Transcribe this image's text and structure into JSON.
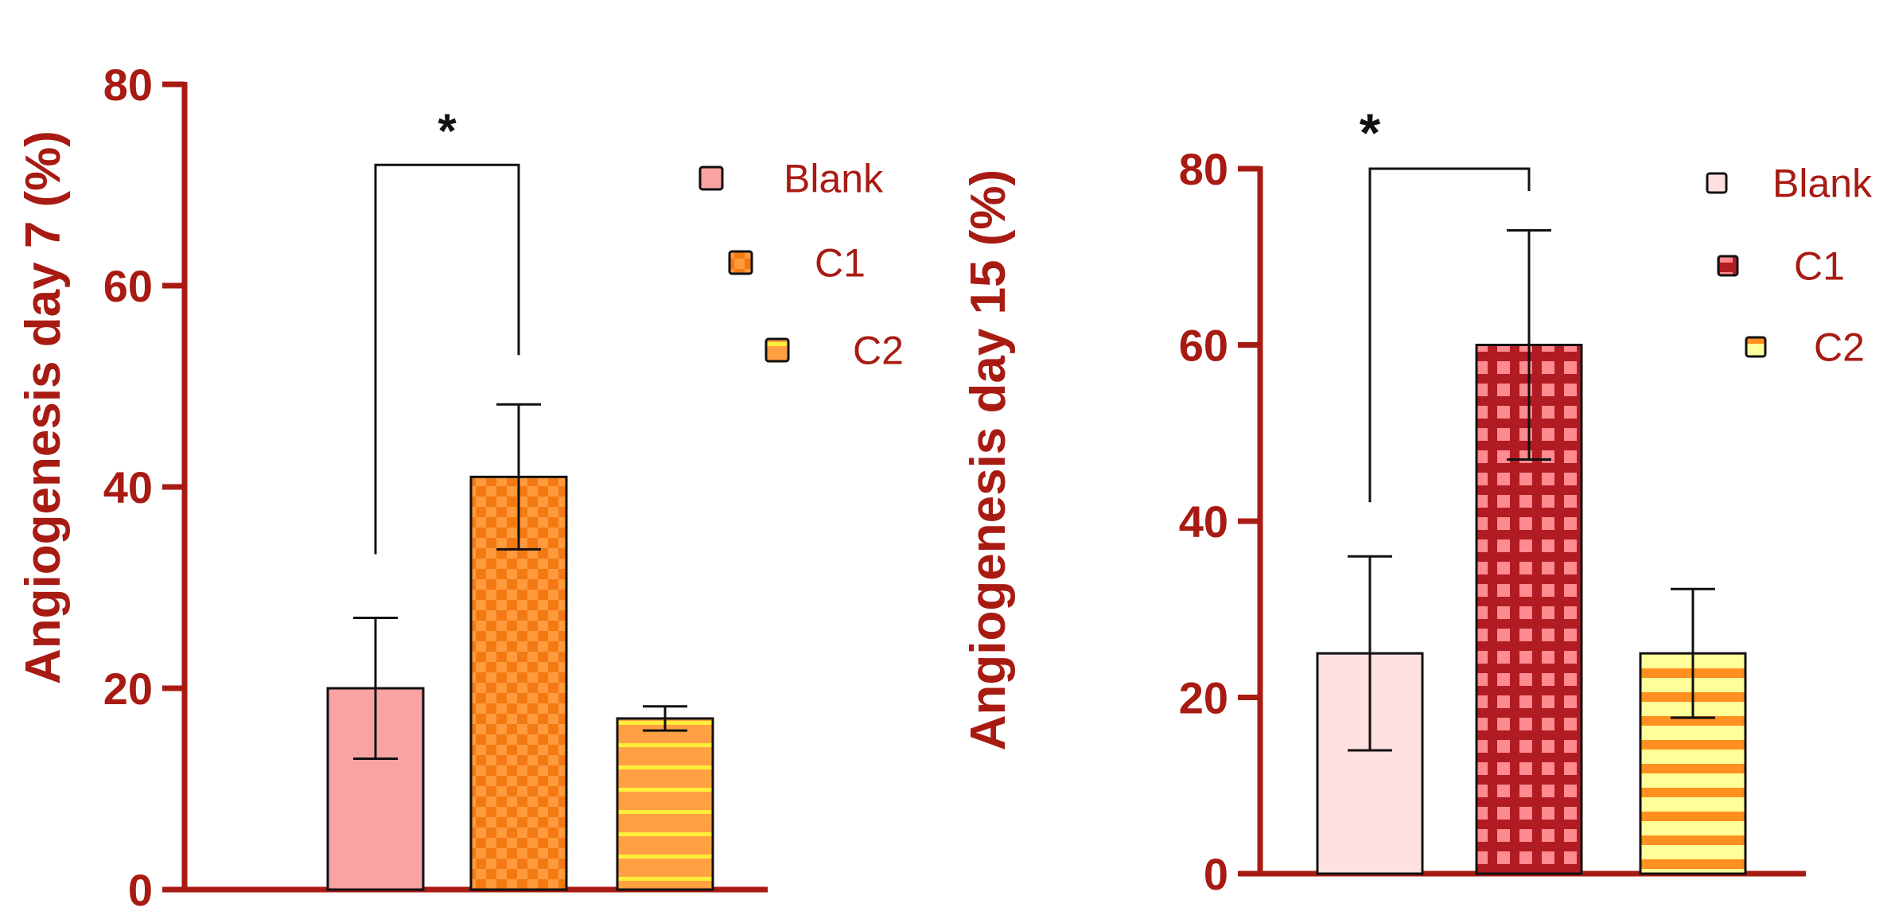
{
  "chart_data": [
    {
      "type": "bar",
      "ylabel": "Angiogenesis day 7   (%)",
      "ylim": [
        0,
        80
      ],
      "yticks": [
        0,
        20,
        40,
        60,
        80
      ],
      "categories": [
        "Blank",
        "C1",
        "C2"
      ],
      "values": [
        20,
        41,
        17
      ],
      "errors": [
        7,
        7.2,
        1.2
      ],
      "legend": [
        "Blank",
        "C1",
        "C2"
      ],
      "legend_position": "top-right",
      "significance": {
        "from": 0,
        "to": 1,
        "label": "*"
      },
      "axis_color": "#a81b13",
      "bar_styles": [
        {
          "fill": "#f9a3a3",
          "pattern": "solid"
        },
        {
          "fill": "#f37a12",
          "alt": "#ff9a3d",
          "pattern": "checker"
        },
        {
          "fill": "#ffa043",
          "alt": "#ffee3a",
          "pattern": "stripes"
        }
      ]
    },
    {
      "type": "bar",
      "ylabel": "Angiogenesis day 15  (%)",
      "ylim": [
        0,
        80
      ],
      "yticks": [
        0,
        20,
        40,
        60,
        80
      ],
      "categories": [
        "Blank",
        "C1",
        "C2"
      ],
      "values": [
        25,
        60,
        25
      ],
      "errors": [
        11,
        13,
        7.3
      ],
      "legend": [
        "Blank",
        "C1",
        "C2"
      ],
      "legend_position": "top-right",
      "significance": {
        "from": 0,
        "to": 1,
        "label": "*"
      },
      "axis_color": "#a81b13",
      "bar_styles": [
        {
          "fill": "#ffe0e0",
          "pattern": "solid"
        },
        {
          "fill": "#b01c22",
          "alt": "#ff8a8f",
          "pattern": "grid"
        },
        {
          "fill": "#ff8f1f",
          "alt": "#ffff99",
          "pattern": "stripes"
        }
      ]
    }
  ]
}
